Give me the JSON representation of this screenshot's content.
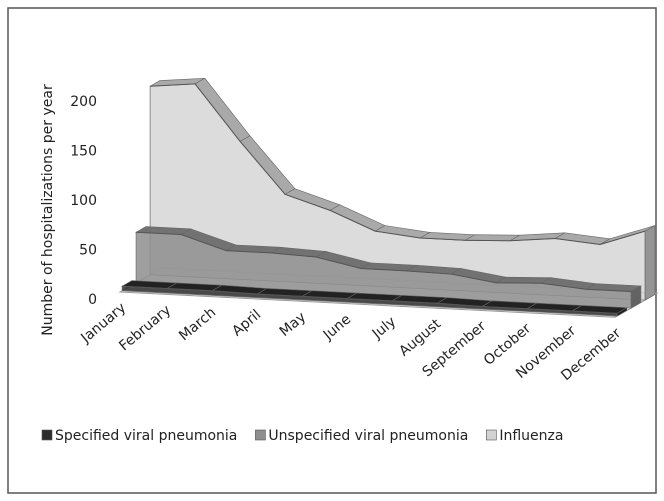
{
  "chart_data": {
    "type": "line3d",
    "y_label": "Number of hospitalizations per year",
    "categories": [
      "January",
      "February",
      "March",
      "April",
      "May",
      "June",
      "July",
      "August",
      "September",
      "October",
      "November",
      "December"
    ],
    "series": [
      {
        "name": "Specified viral pneumonia",
        "color": "#2b2b2b",
        "values": [
          5,
          5,
          5,
          4,
          4,
          4,
          4,
          4,
          3,
          3,
          3,
          3
        ]
      },
      {
        "name": "Unspecified viral pneumonia",
        "color": "#8e8e8e",
        "values": [
          55,
          55,
          40,
          40,
          38,
          28,
          28,
          27,
          20,
          22,
          18,
          18
        ]
      },
      {
        "name": "Influenza",
        "color": "#d3d3d3",
        "values": [
          205,
          210,
          150,
          95,
          80,
          60,
          55,
          55,
          57,
          62,
          58,
          75
        ]
      }
    ],
    "ylim": [
      0,
      200
    ],
    "yticks": [
      0,
      50,
      100,
      150,
      200
    ]
  }
}
